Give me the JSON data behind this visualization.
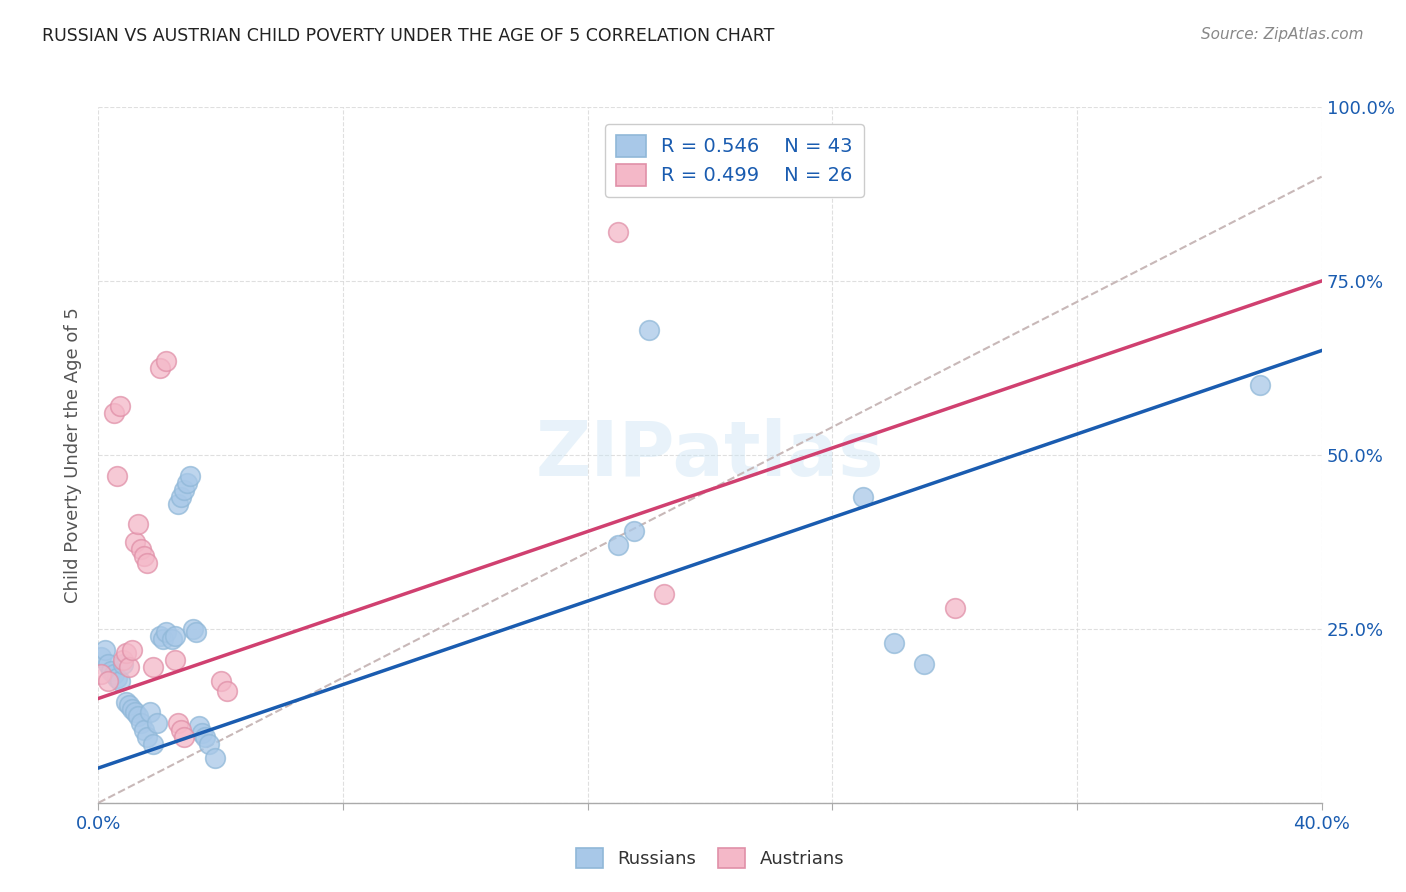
{
  "title": "RUSSIAN VS AUSTRIAN CHILD POVERTY UNDER THE AGE OF 5 CORRELATION CHART",
  "source": "Source: ZipAtlas.com",
  "ylabel": "Child Poverty Under the Age of 5",
  "xlim": [
    0.0,
    0.4
  ],
  "ylim": [
    0.0,
    1.0
  ],
  "russian_color": "#a8c8e8",
  "austrian_color": "#f4b8c8",
  "russian_line_color": "#1a5cb0",
  "austrian_line_color": "#d04070",
  "diagonal_color": "#c8b8b8",
  "legend_text_color": "#1a5cb0",
  "rus_line_x0": 0.0,
  "rus_line_y0": 0.05,
  "rus_line_x1": 0.4,
  "rus_line_y1": 0.65,
  "aut_line_x0": 0.0,
  "aut_line_y0": 0.15,
  "aut_line_x1": 0.4,
  "aut_line_y1": 0.75,
  "russians_x": [
    0.001,
    0.002,
    0.003,
    0.004,
    0.005,
    0.006,
    0.007,
    0.008,
    0.009,
    0.01,
    0.011,
    0.012,
    0.013,
    0.014,
    0.015,
    0.016,
    0.017,
    0.018,
    0.019,
    0.02,
    0.021,
    0.022,
    0.024,
    0.025,
    0.026,
    0.027,
    0.028,
    0.029,
    0.03,
    0.031,
    0.032,
    0.033,
    0.034,
    0.035,
    0.036,
    0.038,
    0.17,
    0.175,
    0.18,
    0.25,
    0.26,
    0.27,
    0.38
  ],
  "russians_y": [
    0.21,
    0.22,
    0.2,
    0.19,
    0.185,
    0.18,
    0.175,
    0.2,
    0.145,
    0.14,
    0.135,
    0.13,
    0.125,
    0.115,
    0.105,
    0.095,
    0.13,
    0.085,
    0.115,
    0.24,
    0.235,
    0.245,
    0.235,
    0.24,
    0.43,
    0.44,
    0.45,
    0.46,
    0.47,
    0.25,
    0.245,
    0.11,
    0.1,
    0.095,
    0.085,
    0.065,
    0.37,
    0.39,
    0.68,
    0.44,
    0.23,
    0.2,
    0.6
  ],
  "austrians_x": [
    0.001,
    0.003,
    0.005,
    0.006,
    0.007,
    0.008,
    0.009,
    0.01,
    0.011,
    0.012,
    0.013,
    0.014,
    0.015,
    0.016,
    0.018,
    0.02,
    0.022,
    0.025,
    0.026,
    0.027,
    0.028,
    0.04,
    0.042,
    0.17,
    0.185,
    0.28
  ],
  "austrians_y": [
    0.185,
    0.175,
    0.56,
    0.47,
    0.57,
    0.205,
    0.215,
    0.195,
    0.22,
    0.375,
    0.4,
    0.365,
    0.355,
    0.345,
    0.195,
    0.625,
    0.635,
    0.205,
    0.115,
    0.105,
    0.095,
    0.175,
    0.16,
    0.82,
    0.3,
    0.28
  ]
}
